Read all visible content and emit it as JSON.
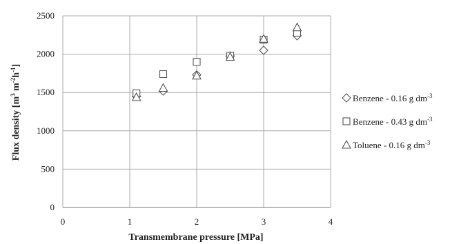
{
  "chart_data": {
    "type": "scatter",
    "xlabel": "Transmembrane pressure [MPa]",
    "ylabel_parts": [
      "Flux density [m",
      "3",
      " m",
      "-2",
      "h",
      "-1",
      "]"
    ],
    "xlim": [
      0,
      4
    ],
    "ylim": [
      0,
      2500
    ],
    "xticks": [
      "0",
      "1",
      "2",
      "3",
      "4"
    ],
    "yticks": [
      "0",
      "500",
      "1000",
      "1500",
      "2000",
      "2500"
    ],
    "grid": "both",
    "legend_position": "right",
    "series": [
      {
        "name_text": "Benzene - 0.16 g dm",
        "name_sup": "-3",
        "marker": "diamond",
        "x": [
          1.1,
          1.5,
          2.0,
          2.5,
          3.0,
          3.5
        ],
        "y": [
          1450,
          1520,
          1730,
          1975,
          2050,
          2240
        ]
      },
      {
        "name_text": "Benzene - 0.43 g dm",
        "name_sup": "-3",
        "marker": "square",
        "x": [
          1.1,
          1.5,
          2.0,
          2.5,
          3.0,
          3.5
        ],
        "y": [
          1490,
          1740,
          1900,
          1980,
          2190,
          2280
        ]
      },
      {
        "name_text": "Toluene - 0.16 g dm",
        "name_sup": "-3",
        "marker": "triangle",
        "x": [
          1.1,
          1.5,
          2.0,
          2.5,
          3.0,
          3.5
        ],
        "y": [
          1440,
          1560,
          1720,
          1965,
          2200,
          2350
        ]
      }
    ]
  }
}
